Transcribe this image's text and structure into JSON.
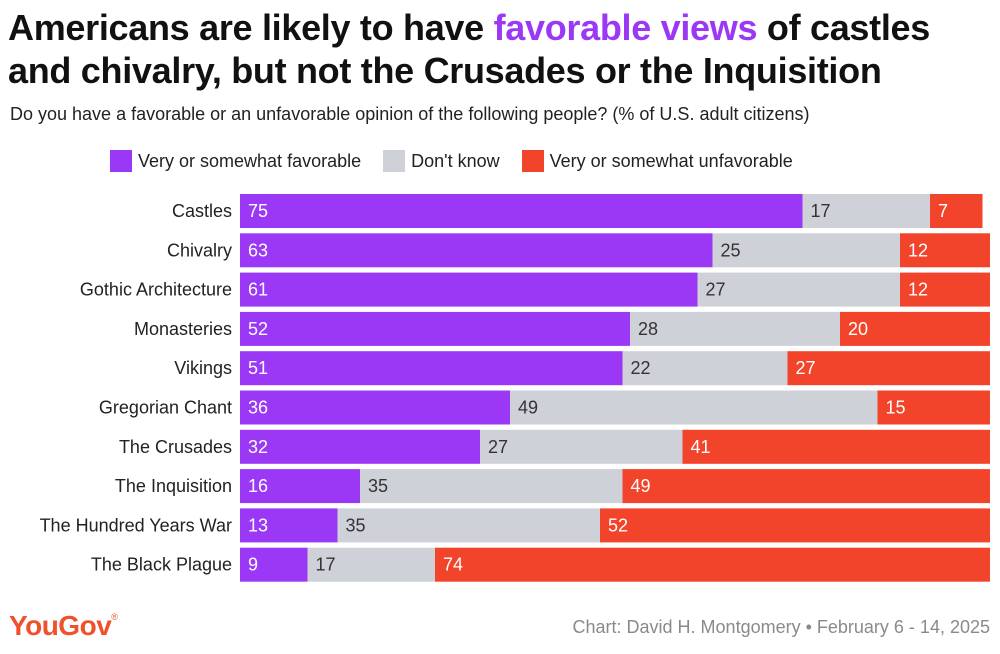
{
  "header": {
    "title_before": "Americans are likely to have ",
    "title_highlight": "favorable views",
    "title_after": " of castles and chivalry, but not the Crusades or the Inquisition",
    "subtitle": "Do you have a favorable or an unfavorable opinion of the following people? (% of U.S. adult citizens)"
  },
  "footer": {
    "logo": "YouGov",
    "logo_mark": "®",
    "credit": "Chart: David H. Montgomery • February 6 - 14, 2025"
  },
  "colors": {
    "favorable": "#9b38f5",
    "dont_know": "#cfd1d9",
    "unfavorable": "#f2432b",
    "highlight": "#9b38f5",
    "brand": "#f0502a"
  },
  "chart_data": {
    "type": "bar",
    "orientation": "horizontal",
    "stacked": true,
    "title": "Americans are likely to have favorable views of castles and chivalry, but not the Crusades or the Inquisition",
    "subtitle": "Do you have a favorable or an unfavorable opinion of the following people? (% of U.S. adult citizens)",
    "xlim": [
      0,
      100
    ],
    "legend_position": "top",
    "categories": [
      "Castles",
      "Chivalry",
      "Gothic Architecture",
      "Monasteries",
      "Vikings",
      "Gregorian Chant",
      "The Crusades",
      "The Inquisition",
      "The Hundred Years War",
      "The Black Plague"
    ],
    "series": [
      {
        "name": "Very or somewhat favorable",
        "color": "#9b38f5",
        "values": [
          75,
          63,
          61,
          52,
          51,
          36,
          32,
          16,
          13,
          9
        ]
      },
      {
        "name": "Don't know",
        "color": "#cfd1d9",
        "values": [
          17,
          25,
          27,
          28,
          22,
          49,
          27,
          35,
          35,
          17
        ]
      },
      {
        "name": "Very or somewhat unfavorable",
        "color": "#f2432b",
        "values": [
          7,
          12,
          12,
          20,
          27,
          15,
          41,
          49,
          52,
          74
        ]
      }
    ]
  }
}
